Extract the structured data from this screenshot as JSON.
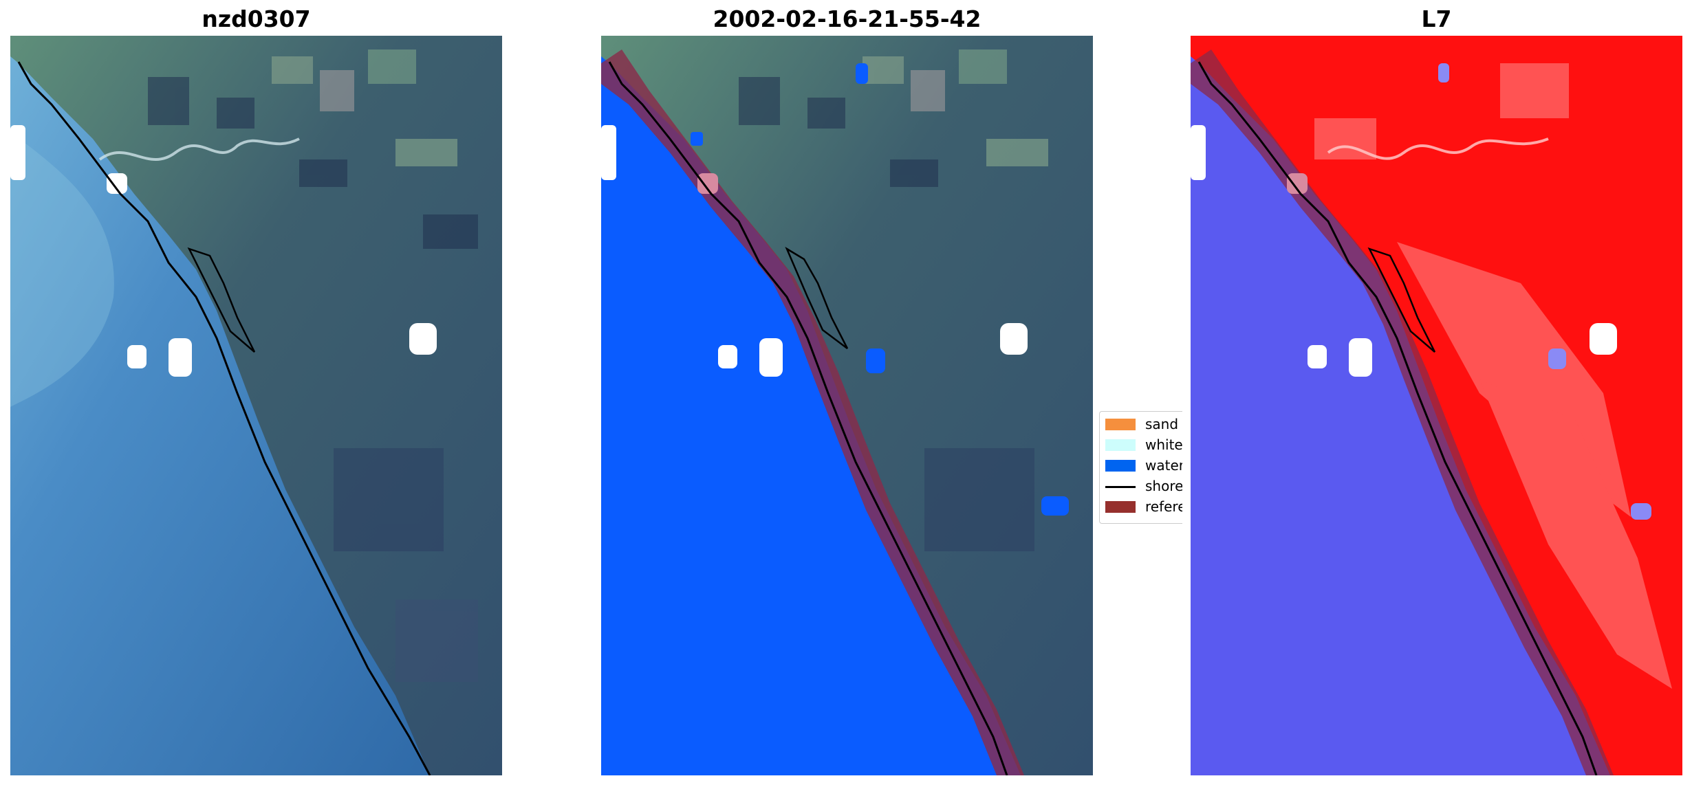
{
  "panels": [
    {
      "title": "nzd0307"
    },
    {
      "title": "2002-02-16-21-55-42"
    },
    {
      "title": "L7"
    }
  ],
  "legend": {
    "items": [
      {
        "label": "sand",
        "color": "#f58f3d"
      },
      {
        "label": "whitewater",
        "color": "#cdfdfc"
      },
      {
        "label": "water",
        "color": "#0064f0"
      },
      {
        "label": "shoreline",
        "color": "#000000"
      },
      {
        "label": "reference",
        "color": "#96302d"
      }
    ]
  },
  "colors": {
    "ocean": "#3f7fbf",
    "land": "#2f4f6f",
    "water_class": "#0a5cff",
    "reference_buffer": "#8a2a4a",
    "index_land": "#ff1010",
    "index_water": "#5a5af0"
  }
}
